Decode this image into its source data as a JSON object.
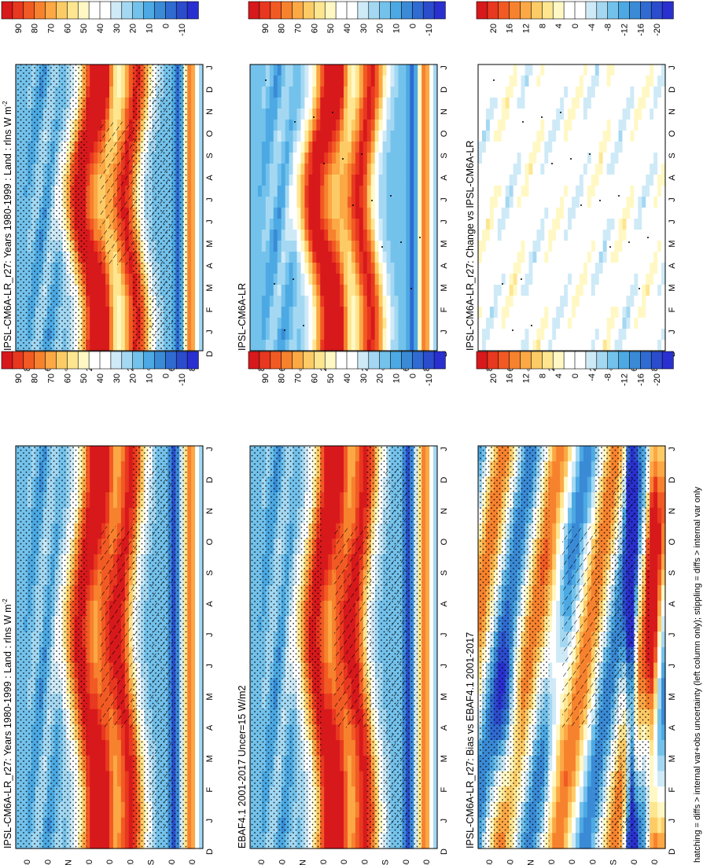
{
  "figure": {
    "footnote": "hatching = diffs > internal var+obs uncertainty (left column only); stippling = diffs > internal var only"
  },
  "scales": {
    "abs": {
      "labels": [
        "90",
        "80",
        "70",
        "60",
        "50",
        "40",
        "30",
        "20",
        "10",
        "0",
        "-10"
      ],
      "colors": [
        "#d7191c",
        "#e8381f",
        "#f25a24",
        "#f7822e",
        "#fba845",
        "#fdcb66",
        "#fee690",
        "#fff8c4",
        "#ffffff",
        "#ffffff",
        "#cfeaf7",
        "#a4d8f2",
        "#73c2ec",
        "#4ca9e3",
        "#3a8ad6",
        "#2f6bd1",
        "#2b4ccc",
        "#2a2fd0"
      ]
    },
    "diff": {
      "labels": [
        "20",
        "16",
        "12",
        "8",
        "4",
        "0",
        "-4",
        "-8",
        "-12",
        "-16",
        "-20"
      ],
      "colors": [
        "#d7191c",
        "#e8381f",
        "#f25a24",
        "#f7822e",
        "#fba845",
        "#fdcb66",
        "#fee690",
        "#fff8c4",
        "#ffffff",
        "#ffffff",
        "#cfeaf7",
        "#a4d8f2",
        "#73c2ec",
        "#4ca9e3",
        "#3a8ad6",
        "#2f6bd1",
        "#2b4ccc",
        "#2a2fd0"
      ]
    }
  },
  "axes": {
    "months": [
      "D",
      "J",
      "F",
      "M",
      "A",
      "M",
      "J",
      "J",
      "A",
      "S",
      "O",
      "N",
      "D",
      "J"
    ],
    "lat_ticks": [
      "80",
      "60",
      "°N",
      "20",
      "0",
      "20",
      "°S",
      "60",
      "80"
    ]
  },
  "chart_data": [
    {
      "id": "p1",
      "type": "heatmap",
      "title": "IPSL-CM6A-LR_r27: Years 1980-1999 : Land : rlns W m",
      "title_sup": "-2",
      "scale": "abs",
      "x": "month (D..J)",
      "y": "latitude (80N..80S)",
      "peaks": [
        {
          "lat": 20,
          "value": 95
        },
        {
          "lat": -20,
          "value": 90
        }
      ],
      "trough_lat_s": -65,
      "overlays": [
        "stippling",
        "hatching"
      ]
    },
    {
      "id": "p2",
      "type": "heatmap",
      "title": "IPSL-CM6A-LR",
      "scale": "abs",
      "x": "month (D..J)",
      "y": "latitude (80N..80S)",
      "peaks": [
        {
          "lat": 20,
          "value": 95
        },
        {
          "lat": -20,
          "value": 90
        }
      ],
      "trough_lat_s": -65,
      "overlays": [
        "stippling"
      ]
    },
    {
      "id": "p3",
      "type": "heatmap",
      "title": "IPSL-CM6A-LR_r27: Change vs IPSL-CM6A-LR",
      "scale": "diff",
      "x": "month (D..J)",
      "y": "latitude (80N..80S)",
      "range": [
        -6,
        6
      ],
      "overlays": [
        "stippling"
      ]
    },
    {
      "id": "p4",
      "type": "heatmap",
      "title": "IPSL-CM6A-LR_r27: Years 1980-1999 : Land : rlns W m",
      "title_sup": "-2",
      "scale": "abs",
      "x": "month (D..J)",
      "y": "latitude (80N..80S)",
      "peaks": [
        {
          "lat": 20,
          "value": 92
        },
        {
          "lat": -15,
          "value": 90
        }
      ],
      "trough_lat_s": -60,
      "overlays": [
        "stippling",
        "hatching"
      ]
    },
    {
      "id": "p5",
      "type": "heatmap",
      "title": "EBAF4.1 2001-2017 Uncer=15 W/m2",
      "scale": "abs",
      "x": "month (D..J)",
      "y": "latitude (80N..80S)",
      "peaks": [
        {
          "lat": 20,
          "value": 92
        },
        {
          "lat": -15,
          "value": 90
        }
      ],
      "trough_lat_s": -60,
      "overlays": [
        "stippling",
        "hatching"
      ]
    },
    {
      "id": "p6",
      "type": "heatmap",
      "title": "IPSL-CM6A-LR_r27: Bias vs EBAF4.1 2001-2017",
      "scale": "diff",
      "x": "month (D..J)",
      "y": "latitude (80N..80S)",
      "range": [
        -22,
        22
      ],
      "overlays": [
        "stippling",
        "hatching"
      ]
    }
  ]
}
